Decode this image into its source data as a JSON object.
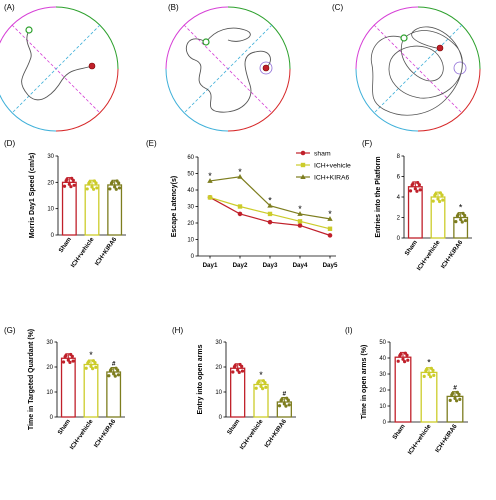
{
  "colors": {
    "sham": "#c0202a",
    "vehicle": "#cccc2a",
    "kira6": "#7d7d1e",
    "pathline": "#5a5a5a"
  },
  "panels": {
    "A": "(A)",
    "B": "(B)",
    "C": "(C)",
    "D": "(D)",
    "E": "(E)",
    "F": "(F)",
    "G": "(G)",
    "H": "(H)",
    "I": "(I)"
  },
  "chart_data": [
    {
      "panel": "D",
      "type": "bar",
      "categories": [
        "Sham",
        "ICH+vehicle",
        "ICH+KIRA6"
      ],
      "values": [
        20,
        19,
        19
      ],
      "ylabel": "Morris Day1 Speed (cm/s)",
      "ylim": [
        0,
        30
      ],
      "yticks": [
        "0",
        "10",
        "20",
        "30"
      ],
      "annotations": []
    },
    {
      "panel": "E",
      "type": "line",
      "categories": [
        "Day1",
        "Day2",
        "Day3",
        "Day4",
        "Day5"
      ],
      "ylabel": "Escape Latency(s)",
      "ylim": [
        0,
        60
      ],
      "yticks": [
        "0",
        "10",
        "20",
        "30",
        "40",
        "50",
        "60"
      ],
      "series": [
        {
          "name": "sham",
          "values": [
            35.5,
            25.5,
            20.5,
            18.5,
            12.5
          ]
        },
        {
          "name": "ICH+vehicle",
          "values": [
            35.5,
            30,
            25.5,
            21,
            16.5
          ]
        },
        {
          "name": "ICH+KIRA6",
          "values": [
            45.5,
            48,
            30.5,
            25.5,
            22.5
          ]
        }
      ],
      "annotations": [
        "*",
        "*",
        "*",
        "*",
        "*"
      ],
      "legend": "top-right"
    },
    {
      "panel": "F",
      "type": "bar",
      "categories": [
        "Sham",
        "ICH+vehicle",
        "ICH+KIRA6"
      ],
      "values": [
        5,
        4,
        2
      ],
      "ylabel": "Entries into the Platform",
      "ylim": [
        0,
        8
      ],
      "yticks": [
        "0",
        "2",
        "4",
        "6",
        "8"
      ],
      "annotations": [
        "",
        "",
        "*"
      ]
    },
    {
      "panel": "G",
      "type": "bar",
      "categories": [
        "Sham",
        "ICH+vehicle",
        "ICH+KIRA6"
      ],
      "values": [
        23.5,
        21,
        18
      ],
      "ylabel": "Time in Targeted Quardant (%)",
      "ylim": [
        0,
        30
      ],
      "yticks": [
        "0",
        "10",
        "20",
        "30"
      ],
      "annotations": [
        "",
        "*",
        "#"
      ]
    },
    {
      "panel": "H",
      "type": "bar",
      "categories": [
        "Sham",
        "ICH+vehicle",
        "ICH+KIRA6"
      ],
      "values": [
        19.5,
        13,
        6
      ],
      "ylabel": "Entry into open arms",
      "ylim": [
        0,
        30
      ],
      "yticks": [
        "0",
        "10",
        "20",
        "30"
      ],
      "annotations": [
        "",
        "*",
        "#"
      ]
    },
    {
      "panel": "I",
      "type": "bar",
      "categories": [
        "Sham",
        "ICH+vehicle",
        "ICH+KIRA6"
      ],
      "values": [
        40.5,
        31,
        16
      ],
      "ylabel": "Time in open arms (%)",
      "ylim": [
        0,
        50
      ],
      "yticks": [
        "0",
        "10",
        "20",
        "30",
        "40",
        "50"
      ],
      "annotations": [
        "",
        "*",
        "#"
      ]
    }
  ]
}
